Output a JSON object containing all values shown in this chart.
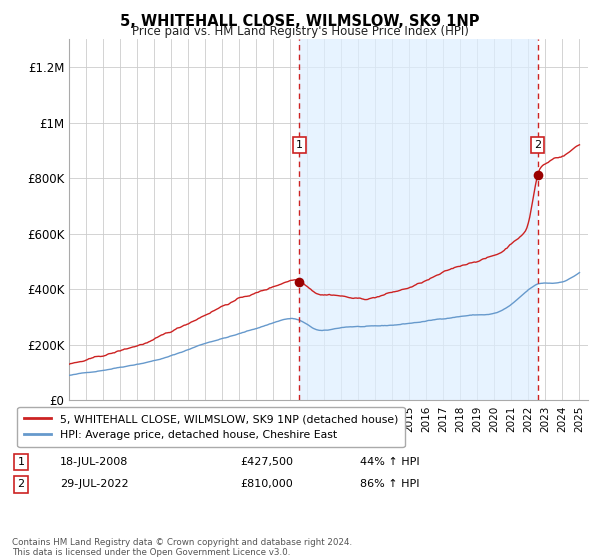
{
  "title": "5, WHITEHALL CLOSE, WILMSLOW, SK9 1NP",
  "subtitle": "Price paid vs. HM Land Registry's House Price Index (HPI)",
  "background_color": "#ffffff",
  "plot_bg_color": "#ffffff",
  "shade_color": "#ddeeff",
  "grid_color": "#cccccc",
  "sale1_date_year": 2008.54,
  "sale1_price": 427500,
  "sale1_label": "18-JUL-2008",
  "sale1_pct": "44% ↑ HPI",
  "sale2_date_year": 2022.54,
  "sale2_price": 810000,
  "sale2_label": "29-JUL-2022",
  "sale2_pct": "86% ↑ HPI",
  "red_line_color": "#cc2222",
  "blue_line_color": "#6699cc",
  "vline_color": "#cc2222",
  "marker_color": "#990000",
  "legend_line1": "5, WHITEHALL CLOSE, WILMSLOW, SK9 1NP (detached house)",
  "legend_line2": "HPI: Average price, detached house, Cheshire East",
  "footer": "Contains HM Land Registry data © Crown copyright and database right 2024.\nThis data is licensed under the Open Government Licence v3.0.",
  "ylim": [
    0,
    1300000
  ],
  "yticks": [
    0,
    200000,
    400000,
    600000,
    800000,
    1000000,
    1200000
  ],
  "ytick_labels": [
    "£0",
    "£200K",
    "£400K",
    "£600K",
    "£800K",
    "£1M",
    "£1.2M"
  ],
  "xmin": 1995.0,
  "xmax": 2025.5
}
